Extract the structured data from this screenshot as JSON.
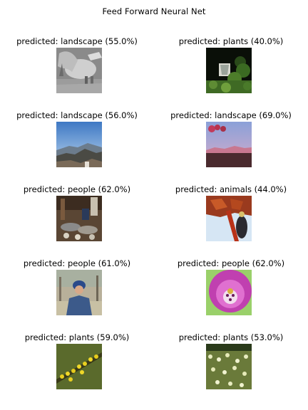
{
  "figure": {
    "title": "Feed Forward Neural Net"
  },
  "chart_data": {
    "type": "image-grid",
    "title": "Feed Forward Neural Net",
    "rows": 5,
    "cols": 2,
    "panels": [
      {
        "label": "predicted: landscape (55.0%)",
        "class": "landscape",
        "confidence": 55.0,
        "image": "grayscale-animal-eating"
      },
      {
        "label": "predicted: plants (40.0%)",
        "class": "plants",
        "confidence": 40.0,
        "image": "dark-forest-with-green-foliage"
      },
      {
        "label": "predicted: landscape (56.0%)",
        "class": "landscape",
        "confidence": 56.0,
        "image": "mountain-ridge-blue-sky"
      },
      {
        "label": "predicted: landscape (69.0%)",
        "class": "landscape",
        "confidence": 69.0,
        "image": "dusky-sky-over-mountains"
      },
      {
        "label": "predicted: people (62.0%)",
        "class": "people",
        "confidence": 62.0,
        "image": "market-stalls-interior"
      },
      {
        "label": "predicted: animals (44.0%)",
        "class": "animals",
        "confidence": 44.0,
        "image": "red-leaves-against-sky"
      },
      {
        "label": "predicted: people (61.0%)",
        "class": "people",
        "confidence": 61.0,
        "image": "man-in-denim-jacket-outdoors"
      },
      {
        "label": "predicted: people (62.0%)",
        "class": "people",
        "confidence": 62.0,
        "image": "purple-flower-closeup"
      },
      {
        "label": "predicted: plants (59.0%)",
        "class": "plants",
        "confidence": 59.0,
        "image": "yellow-flowers-on-branch"
      },
      {
        "label": "predicted: plants (53.0%)",
        "class": "plants",
        "confidence": 53.0,
        "image": "field-of-white-flowers"
      }
    ]
  }
}
